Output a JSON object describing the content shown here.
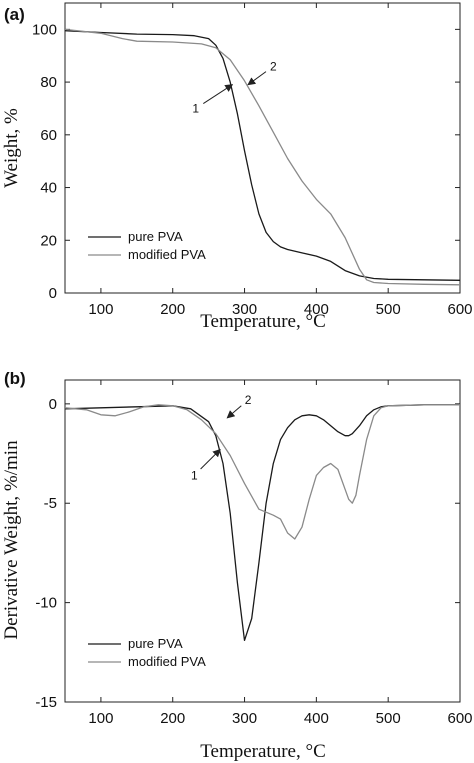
{
  "chart_data": [
    {
      "type": "line",
      "panel_label": "(a)",
      "xlabel": "Temperature, °C",
      "ylabel": "Weight, %",
      "xlim": [
        50,
        600
      ],
      "ylim": [
        0,
        110
      ],
      "xticks": [
        100,
        200,
        300,
        400,
        500,
        600
      ],
      "yticks": [
        0,
        20,
        40,
        60,
        80,
        100
      ],
      "legend_position": "lower-left",
      "series": [
        {
          "name": "pure PVA",
          "color": "#1a1a1a",
          "x": [
            50,
            100,
            150,
            200,
            230,
            250,
            260,
            270,
            280,
            290,
            300,
            310,
            320,
            330,
            340,
            350,
            360,
            380,
            400,
            420,
            440,
            460,
            480,
            500,
            550,
            600
          ],
          "y": [
            99.5,
            98.8,
            98.2,
            98.0,
            97.6,
            96.5,
            94.0,
            89.0,
            80.0,
            68.0,
            54.0,
            41.0,
            30.0,
            23.0,
            19.5,
            17.5,
            16.5,
            15.2,
            14.0,
            12.0,
            8.5,
            6.5,
            5.5,
            5.2,
            5.0,
            4.8
          ]
        },
        {
          "name": "modified PVA",
          "color": "#8a8a8a",
          "x": [
            50,
            100,
            130,
            150,
            200,
            240,
            260,
            280,
            300,
            320,
            340,
            360,
            380,
            400,
            420,
            440,
            460,
            470,
            480,
            500,
            550,
            600
          ],
          "y": [
            100.0,
            98.5,
            96.5,
            95.5,
            95.2,
            94.5,
            93.0,
            88.5,
            80.5,
            71.0,
            61.0,
            51.0,
            42.5,
            35.5,
            30.0,
            21.0,
            9.0,
            5.0,
            4.0,
            3.6,
            3.3,
            3.1
          ]
        }
      ],
      "annotations": [
        {
          "text": "1",
          "series": "pure PVA",
          "x": 283,
          "y": 79,
          "label_x": 232,
          "label_y": 70
        },
        {
          "text": "2",
          "series": "modified PVA",
          "x": 305,
          "y": 79,
          "label_x": 340,
          "label_y": 86
        }
      ]
    },
    {
      "type": "line",
      "panel_label": "(b)",
      "xlabel": "Temperature, °C",
      "ylabel": "Derivative Weight, %/min",
      "xlim": [
        50,
        600
      ],
      "ylim": [
        -15,
        1.2
      ],
      "xticks": [
        100,
        200,
        300,
        400,
        500,
        600
      ],
      "yticks": [
        0,
        -5,
        -10,
        -15
      ],
      "legend_position": "lower-left",
      "series": [
        {
          "name": "pure PVA",
          "color": "#1a1a1a",
          "x": [
            50,
            100,
            150,
            200,
            225,
            250,
            260,
            270,
            280,
            290,
            300,
            310,
            320,
            330,
            340,
            350,
            360,
            370,
            380,
            390,
            400,
            410,
            420,
            430,
            440,
            445,
            450,
            460,
            470,
            480,
            490,
            500,
            550,
            600
          ],
          "y": [
            -0.25,
            -0.2,
            -0.15,
            -0.1,
            -0.25,
            -0.9,
            -1.6,
            -3.0,
            -5.5,
            -9.0,
            -11.9,
            -10.8,
            -8.0,
            -5.0,
            -3.0,
            -1.8,
            -1.2,
            -0.8,
            -0.6,
            -0.55,
            -0.6,
            -0.8,
            -1.1,
            -1.4,
            -1.6,
            -1.6,
            -1.5,
            -1.1,
            -0.6,
            -0.3,
            -0.15,
            -0.1,
            -0.05,
            -0.05
          ]
        },
        {
          "name": "modified PVA",
          "color": "#8a8a8a",
          "x": [
            50,
            80,
            100,
            120,
            140,
            160,
            180,
            200,
            220,
            240,
            260,
            280,
            300,
            320,
            340,
            350,
            360,
            370,
            380,
            390,
            400,
            410,
            420,
            430,
            440,
            445,
            450,
            455,
            460,
            470,
            480,
            490,
            500,
            550,
            600
          ],
          "y": [
            -0.2,
            -0.3,
            -0.55,
            -0.6,
            -0.4,
            -0.15,
            -0.05,
            -0.1,
            -0.3,
            -0.8,
            -1.5,
            -2.6,
            -4.0,
            -5.3,
            -5.6,
            -5.8,
            -6.5,
            -6.8,
            -6.2,
            -4.8,
            -3.6,
            -3.2,
            -3.0,
            -3.3,
            -4.3,
            -4.8,
            -5.0,
            -4.6,
            -3.6,
            -1.8,
            -0.6,
            -0.2,
            -0.1,
            -0.05,
            -0.05
          ]
        }
      ],
      "annotations": [
        {
          "text": "1",
          "series": "pure PVA",
          "x": 266,
          "y": -2.3,
          "label_x": 230,
          "label_y": -3.6
        },
        {
          "text": "2",
          "series": "modified PVA",
          "x": 276,
          "y": -0.7,
          "label_x": 305,
          "label_y": 0.2
        }
      ]
    }
  ]
}
